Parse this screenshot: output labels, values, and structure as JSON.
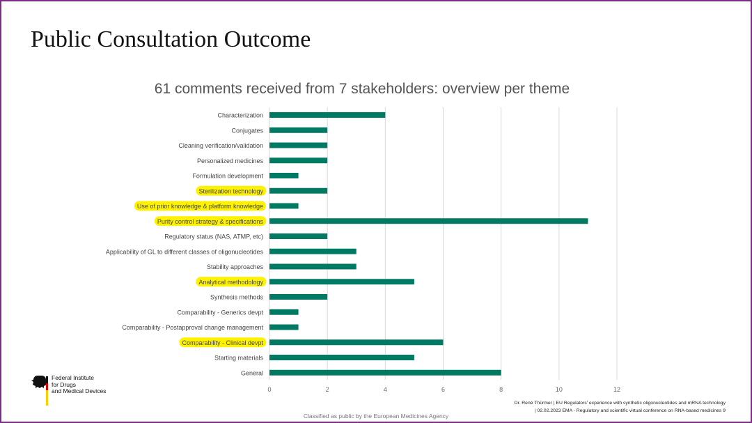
{
  "slide": {
    "title": "Public Consultation Outcome"
  },
  "chart_data": {
    "type": "bar",
    "orientation": "horizontal",
    "title": "61 comments received from 7 stakeholders: overview per theme",
    "categories": [
      "Characterization",
      "Conjugates",
      "Cleaning verification/validation",
      "Personalized medicines",
      "Formulation development",
      "Sterilization technology",
      "Use of prior knowledge & platform knowledge",
      "Purity control strategy & specifications",
      "Regulatory status (NAS, ATMP, etc)",
      "Applicability of GL to different classes of  oligonucleotides",
      "Stability approaches",
      "Analytical methodology",
      "Synthesis methods",
      "Comparability - Generics devpt",
      "Comparability - Postapproval change management",
      "Comparability - Clinical devpt",
      "Starting materials",
      "General"
    ],
    "values": [
      4,
      2,
      2,
      2,
      1,
      2,
      1,
      11,
      2,
      3,
      3,
      5,
      2,
      1,
      1,
      6,
      5,
      8
    ],
    "highlighted": [
      "Sterilization technology",
      "Use of prior knowledge & platform knowledge",
      "Purity control strategy & specifications",
      "Analytical methodology",
      "Comparability - Clinical devpt"
    ],
    "xlim": [
      0,
      12
    ],
    "xticks": [
      0,
      2,
      4,
      6,
      8,
      10,
      12
    ],
    "grid": "vertical",
    "bar_color": "#007a62",
    "highlight_color": "#fff200",
    "xlabel": "",
    "ylabel": ""
  },
  "logo": {
    "line1": "Federal Institute",
    "line2": "for Drugs",
    "line3": "and Medical Devices"
  },
  "footer": {
    "line1": "Dr. René Thürmer | EU Regulators' experience with synthetic oligonucleotides and mRNA technology",
    "line2": "| 02.02.2023  EMA -  Regulatory and scientific virtual conference on RNA-based medicines 9",
    "classification": "Classified as public by the European Medicines Agency"
  },
  "colors": {
    "frame": "#7b2d83",
    "grid": "#d9d9d9"
  }
}
